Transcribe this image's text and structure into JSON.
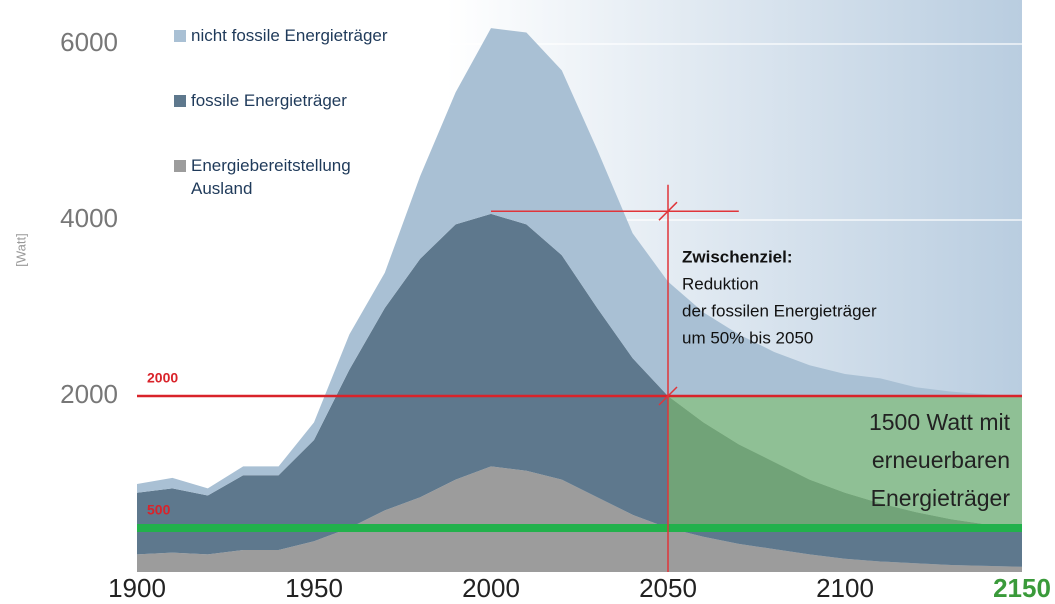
{
  "chart_data": {
    "type": "stacked_area",
    "y_label": "[Watt]",
    "x": [
      1900,
      1910,
      1920,
      1930,
      1940,
      1950,
      1960,
      1970,
      1980,
      1990,
      2000,
      2010,
      2020,
      2030,
      2040,
      2050,
      2060,
      2070,
      2080,
      2090,
      2100,
      2110,
      2120,
      2130,
      2140,
      2150
    ],
    "series": [
      {
        "name": "Energiebereitstellung Ausland",
        "color": "#9c9c9c",
        "values": [
          200,
          220,
          200,
          250,
          250,
          350,
          500,
          700,
          850,
          1050,
          1200,
          1150,
          1050,
          850,
          650,
          500,
          400,
          320,
          260,
          200,
          150,
          120,
          100,
          80,
          70,
          60
        ]
      },
      {
        "name": "fossile Energieträger",
        "color": "#5e788d",
        "values": [
          700,
          730,
          670,
          850,
          850,
          1150,
          1800,
          2300,
          2710,
          2900,
          2870,
          2800,
          2550,
          2150,
          1780,
          1500,
          1300,
          1130,
          990,
          850,
          750,
          660,
          580,
          520,
          470,
          440
        ]
      },
      {
        "name": "nicht fossile Energieträger",
        "color": "#a9c0d4",
        "values": [
          100,
          120,
          80,
          100,
          100,
          200,
          400,
          400,
          940,
          1500,
          2110,
          2180,
          2100,
          1800,
          1420,
          1300,
          1250,
          1250,
          1250,
          1300,
          1350,
          1420,
          1420,
          1450,
          1480,
          1500
        ]
      }
    ],
    "xlim": [
      1900,
      2150
    ],
    "xticks": [
      1900,
      1950,
      2000,
      2050,
      2100,
      2150
    ],
    "xtick_colors": [
      "#222222",
      "#222222",
      "#222222",
      "#222222",
      "#222222",
      "#3a9a3a"
    ],
    "ylim": [
      0,
      6500
    ],
    "yticks": [
      2000,
      4000,
      6000
    ],
    "grid": true,
    "reference_lines": [
      {
        "y": 2000,
        "label": "2000",
        "color": "#d9232a"
      },
      {
        "y": 500,
        "label": "500",
        "color": "#22b14c"
      }
    ],
    "target_band": {
      "x": [
        2050,
        2150
      ],
      "y": [
        500,
        2000
      ],
      "color": "#7fbf6a",
      "lines": [
        "1500 Watt mit",
        "erneuerbaren",
        "Energieträger"
      ]
    },
    "milestone": {
      "x": 2050,
      "from": 2000,
      "y": 4100,
      "to": 2070,
      "top": 4400,
      "color": "#e0353a",
      "title": "Zwischenziel:",
      "lines": [
        "Reduktion",
        "der fossilen Energieträger",
        "um 50% bis 2050"
      ]
    }
  }
}
